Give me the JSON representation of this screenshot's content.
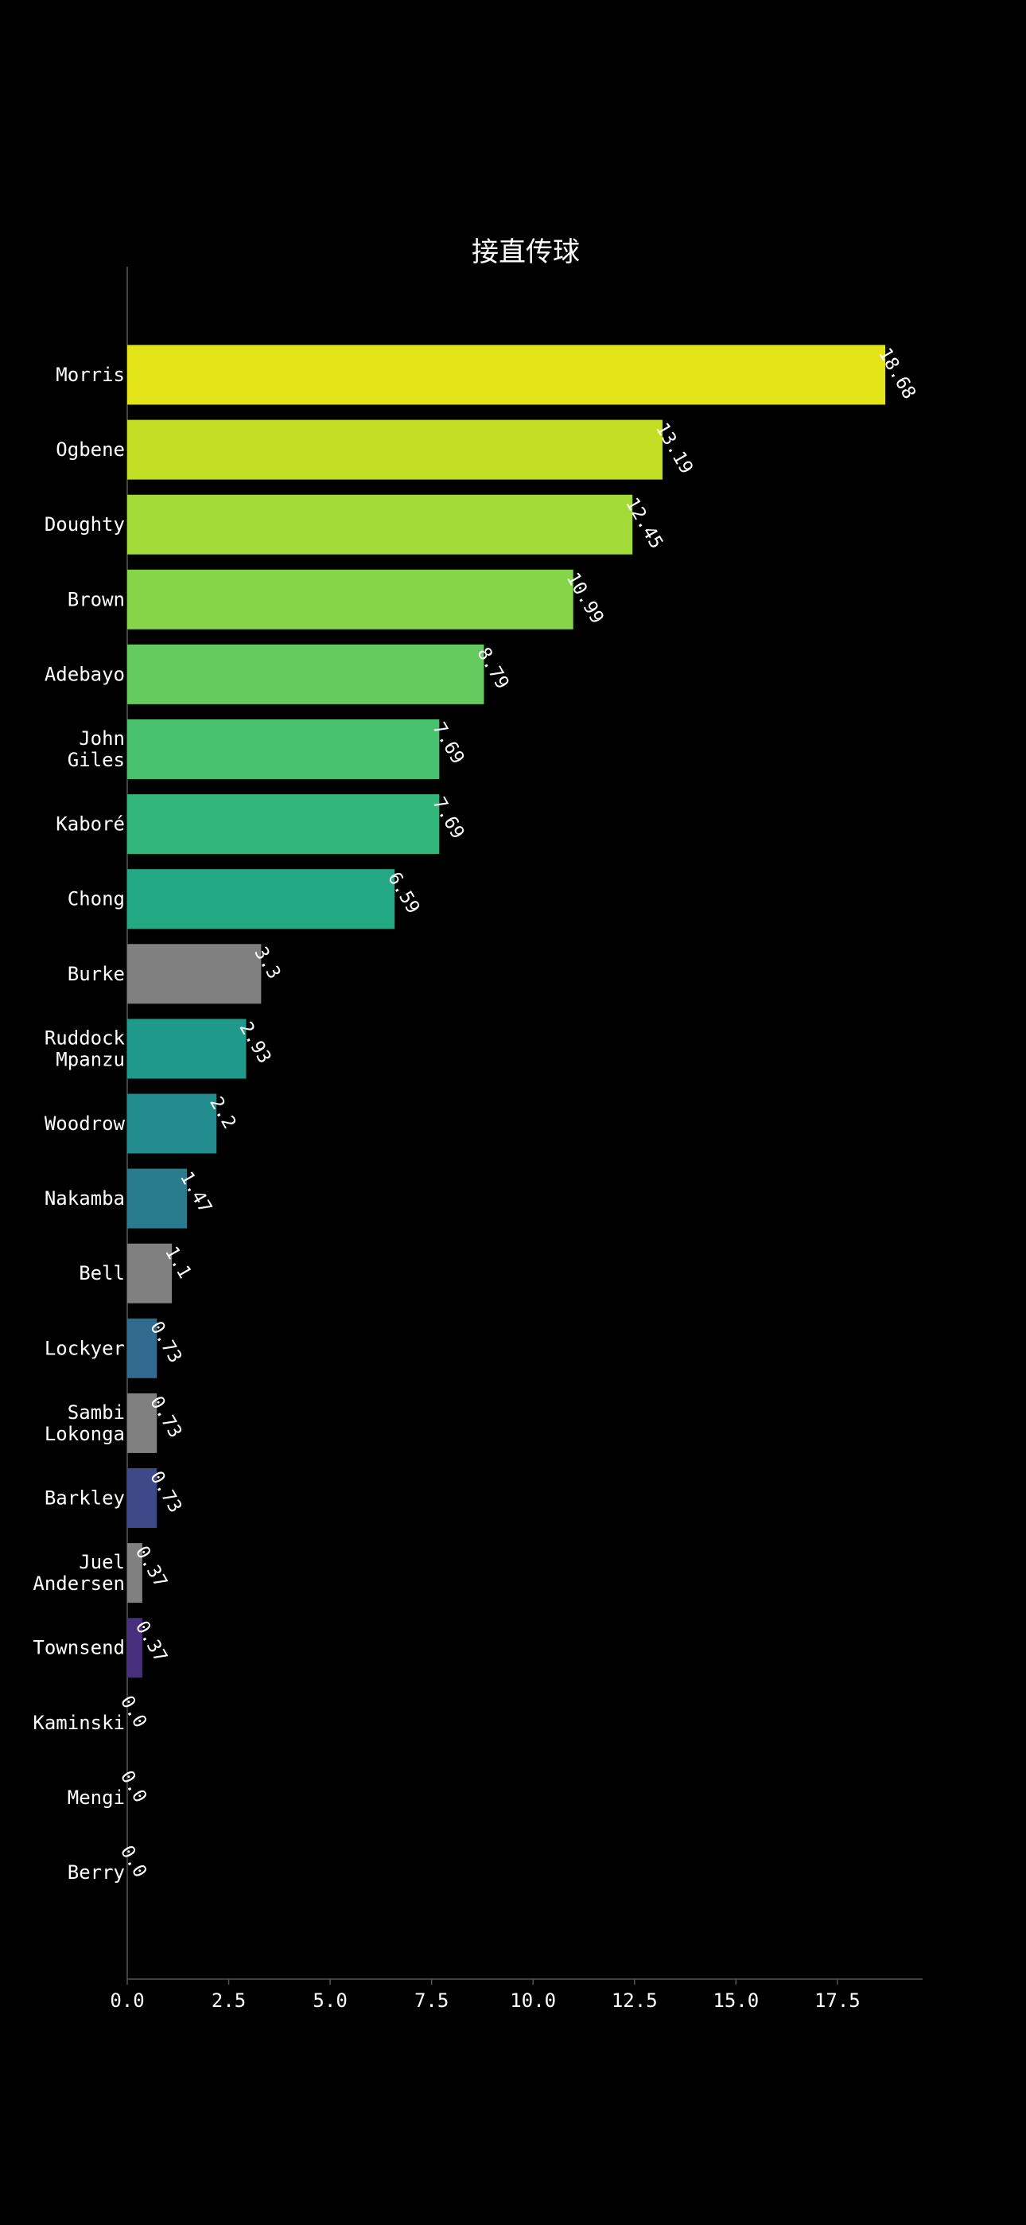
{
  "chart_data": {
    "type": "bar",
    "orientation": "horizontal",
    "title": "接直传球",
    "xlabel": "",
    "ylabel": "",
    "xlim": [
      0,
      19.6
    ],
    "x_ticks": [
      0.0,
      2.5,
      5.0,
      7.5,
      10.0,
      12.5,
      15.0,
      17.5
    ],
    "x_tick_labels": [
      "0.0",
      "2.5",
      "5.0",
      "7.5",
      "10.0",
      "12.5",
      "15.0",
      "17.5"
    ],
    "grid": false,
    "legend": "none",
    "categories": [
      [
        "Morris"
      ],
      [
        "Ogbene"
      ],
      [
        "Doughty"
      ],
      [
        "Brown"
      ],
      [
        "Adebayo"
      ],
      [
        "John",
        "Giles"
      ],
      [
        "Kaboré"
      ],
      [
        "Chong"
      ],
      [
        "Burke"
      ],
      [
        "Ruddock",
        "Mpanzu"
      ],
      [
        "Woodrow"
      ],
      [
        "Nakamba"
      ],
      [
        "Bell"
      ],
      [
        "Lockyer"
      ],
      [
        "Sambi",
        "Lokonga"
      ],
      [
        "Barkley"
      ],
      [
        "Juel",
        "Andersen"
      ],
      [
        "Townsend"
      ],
      [
        "Kaminski"
      ],
      [
        "Mengi"
      ],
      [
        "Berry"
      ]
    ],
    "values": [
      18.68,
      13.19,
      12.45,
      10.99,
      8.79,
      7.69,
      7.69,
      6.59,
      3.3,
      2.93,
      2.2,
      1.47,
      1.1,
      0.73,
      0.73,
      0.73,
      0.37,
      0.37,
      0.0,
      0.0,
      0.0
    ],
    "value_labels": [
      "18.68",
      "13.19",
      "12.45",
      "10.99",
      "8.79",
      "7.69",
      "7.69",
      "6.59",
      "3.3",
      "2.93",
      "2.2",
      "1.47",
      "1.1",
      "0.73",
      "0.73",
      "0.73",
      "0.37",
      "0.37",
      "0.0",
      "0.0",
      "0.0"
    ],
    "colors": [
      "#e2e418",
      "#c2df23",
      "#a2da37",
      "#86d549",
      "#65cb5e",
      "#48c16e",
      "#32b67a",
      "#23a983",
      "#808080",
      "#1f9a8a",
      "#228b8d",
      "#287c8e",
      "#808080",
      "#306a8e",
      "#808080",
      "#3e4989",
      "#808080",
      "#472f7d",
      "#482173",
      "#440154",
      "#440154"
    ],
    "styles": {
      "background": "#000000",
      "text_color": "#ffffff",
      "axis_color": "#555555"
    }
  }
}
